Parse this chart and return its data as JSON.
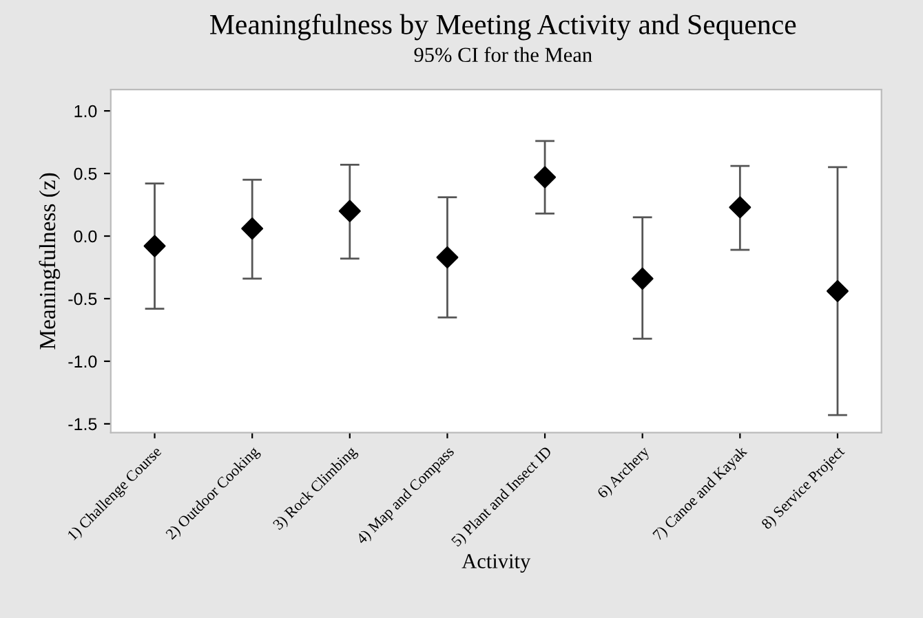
{
  "chart_data": {
    "type": "scatter",
    "title": "Meaningfulness by Meeting Activity and Sequence",
    "subtitle": "95% CI for the Mean",
    "xlabel": "Activity",
    "ylabel": "Meaningfulness (z)",
    "categories": [
      "1) Challenge Course",
      "2) Outdoor Cooking",
      "3) Rock Climbing",
      "4) Map and Compass",
      "5) Plant and Insect ID",
      "6) Archery",
      "7) Canoe and Kayak",
      "8) Service Project"
    ],
    "values": [
      -0.08,
      0.06,
      0.2,
      -0.17,
      0.47,
      -0.34,
      0.23,
      -0.44
    ],
    "errors": [
      [
        -0.58,
        0.42
      ],
      [
        -0.34,
        0.45
      ],
      [
        -0.18,
        0.57
      ],
      [
        -0.65,
        0.31
      ],
      [
        0.18,
        0.76
      ],
      [
        -0.82,
        0.15
      ],
      [
        -0.11,
        0.56
      ],
      [
        -1.43,
        0.55
      ]
    ],
    "color": "#000000",
    "marker": "diamond",
    "ylim": [
      -1.57,
      1.17
    ],
    "yticks": [
      {
        "value": -1.5,
        "label": "-1.5"
      },
      {
        "value": -1.0,
        "label": "-1.0"
      },
      {
        "value": -0.5,
        "label": "-0.5"
      },
      {
        "value": 0.0,
        "label": "0.0"
      },
      {
        "value": 0.5,
        "label": "0.5"
      },
      {
        "value": 1.0,
        "label": "1.0"
      }
    ],
    "grid": false,
    "legend": false
  }
}
